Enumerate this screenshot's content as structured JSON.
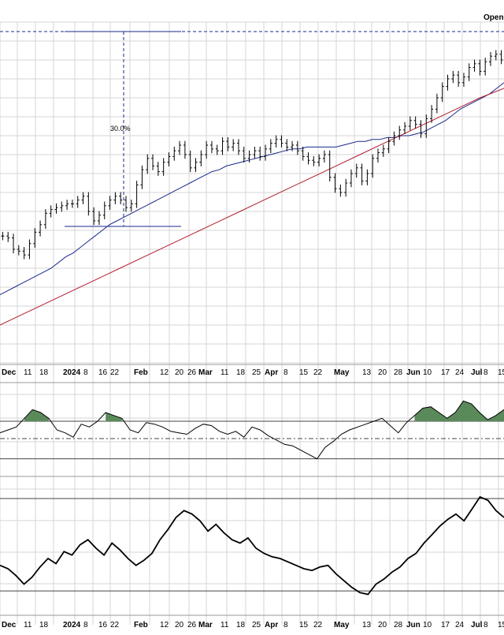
{
  "header": {
    "label": "Open"
  },
  "colors": {
    "price": "#000000",
    "ma_fast": "#1a2a8a",
    "ma_slow": "#b01c2e",
    "grid": "#d6d6d6",
    "fill": "#5a8a5a",
    "annotation": "#1a2a8a"
  },
  "chart_data": [
    {
      "type": "ohlc",
      "panel": "price",
      "annotation": {
        "label": "30.0%"
      },
      "x_ticks": [
        "Dec",
        "11",
        "18",
        "2024",
        "8",
        "16",
        "22",
        "Feb",
        "12",
        "20",
        "26",
        "Mar",
        "11",
        "18",
        "25",
        "Apr",
        "8",
        "15",
        "22",
        "May",
        "13",
        "20",
        "28",
        "Jun",
        "10",
        "17",
        "24",
        "Jul",
        "8",
        "15"
      ],
      "close_index": [
        67,
        66,
        60,
        59,
        57,
        63,
        69,
        73,
        79,
        81,
        82,
        83,
        84,
        84,
        86,
        88,
        80,
        75,
        78,
        83,
        86,
        88,
        86,
        82,
        84,
        94,
        102,
        108,
        104,
        101,
        106,
        109,
        112,
        115,
        110,
        103,
        106,
        110,
        115,
        113,
        112,
        117,
        114,
        116,
        112,
        108,
        110,
        112,
        109,
        113,
        116,
        118,
        116,
        114,
        115,
        112,
        109,
        107,
        106,
        108,
        110,
        98,
        92,
        90,
        95,
        100,
        103,
        96,
        100,
        108,
        111,
        113,
        117,
        120,
        123,
        125,
        128,
        126,
        121,
        129,
        134,
        140,
        146,
        150,
        152,
        148,
        151,
        156,
        158,
        154,
        159,
        162,
        163,
        160
      ],
      "ma_fast_index": [
        36,
        38,
        40,
        42,
        44,
        46,
        48,
        50,
        53,
        56,
        58,
        61,
        64,
        67,
        70,
        73,
        75,
        77,
        79,
        81,
        83,
        85,
        87,
        89,
        91,
        93,
        95,
        97,
        99,
        101,
        102,
        104,
        105,
        106,
        107,
        108,
        109,
        110,
        111,
        112,
        113,
        113,
        114,
        114,
        114,
        114,
        114,
        115,
        116,
        117,
        117,
        118,
        118,
        119,
        119,
        120,
        120,
        121,
        122,
        124,
        126,
        128,
        131,
        134,
        136,
        138,
        140,
        142,
        145,
        148
      ],
      "ma_slow_index": [
        20,
        26,
        32,
        38,
        44,
        50,
        56,
        62,
        68,
        74,
        80,
        86,
        92,
        98,
        104,
        110,
        116,
        122,
        128,
        134,
        140,
        145
      ]
    },
    {
      "type": "line",
      "panel": "indicator",
      "values_index": [
        48,
        50,
        52,
        58,
        64,
        62,
        58,
        50,
        48,
        45,
        54,
        52,
        56,
        62,
        60,
        58,
        50,
        48,
        55,
        54,
        52,
        49,
        48,
        47,
        51,
        54,
        53,
        49,
        47,
        49,
        45,
        52,
        50,
        46,
        43,
        40,
        39,
        36,
        33,
        30,
        38,
        42,
        47,
        50,
        52,
        54,
        56,
        58,
        53,
        48,
        55,
        60,
        65,
        66,
        62,
        58,
        62,
        70,
        68,
        62,
        57,
        60,
        64
      ]
    },
    {
      "type": "line",
      "panel": "oscillator",
      "values_index": [
        40,
        38,
        34,
        29,
        33,
        39,
        44,
        41,
        48,
        46,
        52,
        55,
        50,
        46,
        53,
        49,
        44,
        40,
        43,
        47,
        55,
        61,
        68,
        72,
        70,
        66,
        60,
        64,
        59,
        55,
        53,
        56,
        50,
        47,
        45,
        44,
        42,
        40,
        38,
        37,
        39,
        40,
        35,
        31,
        27,
        24,
        23,
        29,
        32,
        36,
        39,
        44,
        47,
        53,
        58,
        63,
        67,
        70,
        66,
        73,
        80,
        78,
        72,
        68
      ]
    }
  ]
}
